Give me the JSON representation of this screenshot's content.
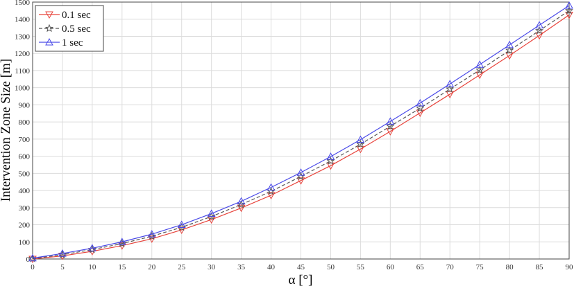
{
  "chart_data": {
    "type": "line",
    "x_label": "α [°]",
    "y_label": "Intervention Zone Size [m]",
    "x": [
      0,
      5,
      10,
      15,
      20,
      25,
      30,
      35,
      40,
      45,
      50,
      55,
      60,
      65,
      70,
      75,
      80,
      85,
      90
    ],
    "series": [
      {
        "name": "0.1 sec",
        "color": "#e8433b",
        "marker": "triangle-down",
        "dash": false,
        "values": [
          0,
          18,
          45,
          78,
          118,
          170,
          230,
          298,
          372,
          458,
          545,
          642,
          745,
          853,
          962,
          1075,
          1188,
          1305,
          1425
        ]
      },
      {
        "name": "0.5 sec",
        "color": "#555555",
        "marker": "star",
        "dash": true,
        "values": [
          2,
          25,
          55,
          90,
          133,
          185,
          248,
          318,
          395,
          482,
          572,
          670,
          775,
          880,
          992,
          1103,
          1218,
          1333,
          1450
        ]
      },
      {
        "name": "1 sec",
        "color": "#4a4ae8",
        "marker": "triangle-up",
        "dash": false,
        "values": [
          5,
          32,
          63,
          100,
          145,
          200,
          265,
          337,
          418,
          505,
          598,
          697,
          803,
          910,
          1022,
          1135,
          1250,
          1365,
          1480
        ]
      }
    ],
    "xlim": [
      0,
      90
    ],
    "xticks": [
      0,
      5,
      10,
      15,
      20,
      25,
      30,
      35,
      40,
      45,
      50,
      55,
      60,
      65,
      70,
      75,
      80,
      85,
      90
    ],
    "ylim": [
      0,
      1500
    ],
    "yticks": [
      0,
      100,
      200,
      300,
      400,
      500,
      600,
      700,
      800,
      900,
      1000,
      1100,
      1200,
      1300,
      1400,
      1500
    ],
    "grid": true,
    "legend": "upper-left"
  }
}
